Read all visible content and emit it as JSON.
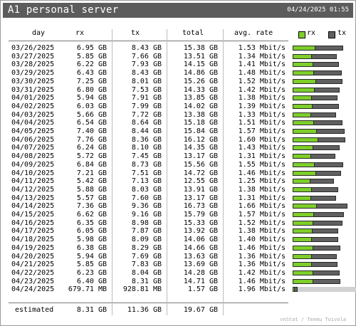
{
  "header": {
    "title": "A1 personal server",
    "timestamp": "04/24/2025 01:55"
  },
  "columns": {
    "day": "day",
    "rx": "rx",
    "tx": "tx",
    "total": "total",
    "avg_rate": "avg. rate"
  },
  "legend": {
    "rx_label": "rx",
    "tx_label": "tx",
    "rx_color": "#7ecf2a",
    "tx_color": "#606060"
  },
  "rows": [
    {
      "day": "03/26/2025",
      "rx": "6.95 GB",
      "tx": "8.43 GB",
      "total": "15.38 GB",
      "rate": "1.53 Mbit/s",
      "rx_gb": 6.95,
      "tx_gb": 8.43
    },
    {
      "day": "03/27/2025",
      "rx": "5.85 GB",
      "tx": "7.66 GB",
      "total": "13.51 GB",
      "rate": "1.34 Mbit/s",
      "rx_gb": 5.85,
      "tx_gb": 7.66
    },
    {
      "day": "03/28/2025",
      "rx": "6.22 GB",
      "tx": "7.93 GB",
      "total": "14.15 GB",
      "rate": "1.41 Mbit/s",
      "rx_gb": 6.22,
      "tx_gb": 7.93
    },
    {
      "day": "03/29/2025",
      "rx": "6.43 GB",
      "tx": "8.43 GB",
      "total": "14.86 GB",
      "rate": "1.48 Mbit/s",
      "rx_gb": 6.43,
      "tx_gb": 8.43
    },
    {
      "day": "03/30/2025",
      "rx": "7.25 GB",
      "tx": "8.01 GB",
      "total": "15.26 GB",
      "rate": "1.52 Mbit/s",
      "rx_gb": 7.25,
      "tx_gb": 8.01
    },
    {
      "day": "03/31/2025",
      "rx": "6.80 GB",
      "tx": "7.53 GB",
      "total": "14.33 GB",
      "rate": "1.42 Mbit/s",
      "rx_gb": 6.8,
      "tx_gb": 7.53
    },
    {
      "day": "04/01/2025",
      "rx": "5.94 GB",
      "tx": "7.91 GB",
      "total": "13.85 GB",
      "rate": "1.38 Mbit/s",
      "rx_gb": 5.94,
      "tx_gb": 7.91
    },
    {
      "day": "04/02/2025",
      "rx": "6.03 GB",
      "tx": "7.99 GB",
      "total": "14.02 GB",
      "rate": "1.39 Mbit/s",
      "rx_gb": 6.03,
      "tx_gb": 7.99
    },
    {
      "day": "04/03/2025",
      "rx": "5.66 GB",
      "tx": "7.72 GB",
      "total": "13.38 GB",
      "rate": "1.33 Mbit/s",
      "rx_gb": 5.66,
      "tx_gb": 7.72
    },
    {
      "day": "04/04/2025",
      "rx": "6.54 GB",
      "tx": "8.64 GB",
      "total": "15.18 GB",
      "rate": "1.51 Mbit/s",
      "rx_gb": 6.54,
      "tx_gb": 8.64
    },
    {
      "day": "04/05/2025",
      "rx": "7.40 GB",
      "tx": "8.44 GB",
      "total": "15.84 GB",
      "rate": "1.57 Mbit/s",
      "rx_gb": 7.4,
      "tx_gb": 8.44
    },
    {
      "day": "04/06/2025",
      "rx": "7.76 GB",
      "tx": "8.36 GB",
      "total": "16.12 GB",
      "rate": "1.60 Mbit/s",
      "rx_gb": 7.76,
      "tx_gb": 8.36
    },
    {
      "day": "04/07/2025",
      "rx": "6.24 GB",
      "tx": "8.10 GB",
      "total": "14.35 GB",
      "rate": "1.43 Mbit/s",
      "rx_gb": 6.24,
      "tx_gb": 8.1
    },
    {
      "day": "04/08/2025",
      "rx": "5.72 GB",
      "tx": "7.45 GB",
      "total": "13.17 GB",
      "rate": "1.31 Mbit/s",
      "rx_gb": 5.72,
      "tx_gb": 7.45
    },
    {
      "day": "04/09/2025",
      "rx": "6.84 GB",
      "tx": "8.73 GB",
      "total": "15.56 GB",
      "rate": "1.55 Mbit/s",
      "rx_gb": 6.84,
      "tx_gb": 8.73
    },
    {
      "day": "04/10/2025",
      "rx": "7.21 GB",
      "tx": "7.51 GB",
      "total": "14.72 GB",
      "rate": "1.46 Mbit/s",
      "rx_gb": 7.21,
      "tx_gb": 7.51
    },
    {
      "day": "04/11/2025",
      "rx": "5.42 GB",
      "tx": "7.13 GB",
      "total": "12.55 GB",
      "rate": "1.25 Mbit/s",
      "rx_gb": 5.42,
      "tx_gb": 7.13
    },
    {
      "day": "04/12/2025",
      "rx": "5.88 GB",
      "tx": "8.03 GB",
      "total": "13.91 GB",
      "rate": "1.38 Mbit/s",
      "rx_gb": 5.88,
      "tx_gb": 8.03
    },
    {
      "day": "04/13/2025",
      "rx": "5.57 GB",
      "tx": "7.60 GB",
      "total": "13.17 GB",
      "rate": "1.31 Mbit/s",
      "rx_gb": 5.57,
      "tx_gb": 7.6
    },
    {
      "day": "04/14/2025",
      "rx": "7.36 GB",
      "tx": "9.36 GB",
      "total": "16.73 GB",
      "rate": "1.66 Mbit/s",
      "rx_gb": 7.36,
      "tx_gb": 9.36
    },
    {
      "day": "04/15/2025",
      "rx": "6.62 GB",
      "tx": "9.16 GB",
      "total": "15.79 GB",
      "rate": "1.57 Mbit/s",
      "rx_gb": 6.62,
      "tx_gb": 9.16
    },
    {
      "day": "04/16/2025",
      "rx": "6.35 GB",
      "tx": "8.98 GB",
      "total": "15.33 GB",
      "rate": "1.52 Mbit/s",
      "rx_gb": 6.35,
      "tx_gb": 8.98
    },
    {
      "day": "04/17/2025",
      "rx": "6.05 GB",
      "tx": "7.87 GB",
      "total": "13.92 GB",
      "rate": "1.38 Mbit/s",
      "rx_gb": 6.05,
      "tx_gb": 7.87
    },
    {
      "day": "04/18/2025",
      "rx": "5.98 GB",
      "tx": "8.09 GB",
      "total": "14.06 GB",
      "rate": "1.40 Mbit/s",
      "rx_gb": 5.98,
      "tx_gb": 8.09
    },
    {
      "day": "04/19/2025",
      "rx": "6.38 GB",
      "tx": "8.29 GB",
      "total": "14.66 GB",
      "rate": "1.46 Mbit/s",
      "rx_gb": 6.38,
      "tx_gb": 8.29
    },
    {
      "day": "04/20/2025",
      "rx": "5.94 GB",
      "tx": "7.69 GB",
      "total": "13.63 GB",
      "rate": "1.36 Mbit/s",
      "rx_gb": 5.94,
      "tx_gb": 7.69
    },
    {
      "day": "04/21/2025",
      "rx": "5.85 GB",
      "tx": "7.83 GB",
      "total": "13.69 GB",
      "rate": "1.36 Mbit/s",
      "rx_gb": 5.85,
      "tx_gb": 7.83
    },
    {
      "day": "04/22/2025",
      "rx": "6.23 GB",
      "tx": "8.04 GB",
      "total": "14.28 GB",
      "rate": "1.42 Mbit/s",
      "rx_gb": 6.23,
      "tx_gb": 8.04
    },
    {
      "day": "04/23/2025",
      "rx": "6.40 GB",
      "tx": "8.31 GB",
      "total": "14.71 GB",
      "rate": "1.46 Mbit/s",
      "rx_gb": 6.4,
      "tx_gb": 8.31
    },
    {
      "day": "04/24/2025",
      "rx": "679.71 MB",
      "tx": "928.81 MB",
      "total": "1.57 GB",
      "rate": "1.96 Mbit/s",
      "rx_gb": 0.664,
      "tx_gb": 0.907,
      "estimated_total_gb": 19.67
    }
  ],
  "estimated": {
    "label": "estimated",
    "rx": "8.31 GB",
    "tx": "11.36 GB",
    "total": "19.67 GB"
  },
  "footer": {
    "credit": "vnStat / Teemu Toivola"
  }
}
